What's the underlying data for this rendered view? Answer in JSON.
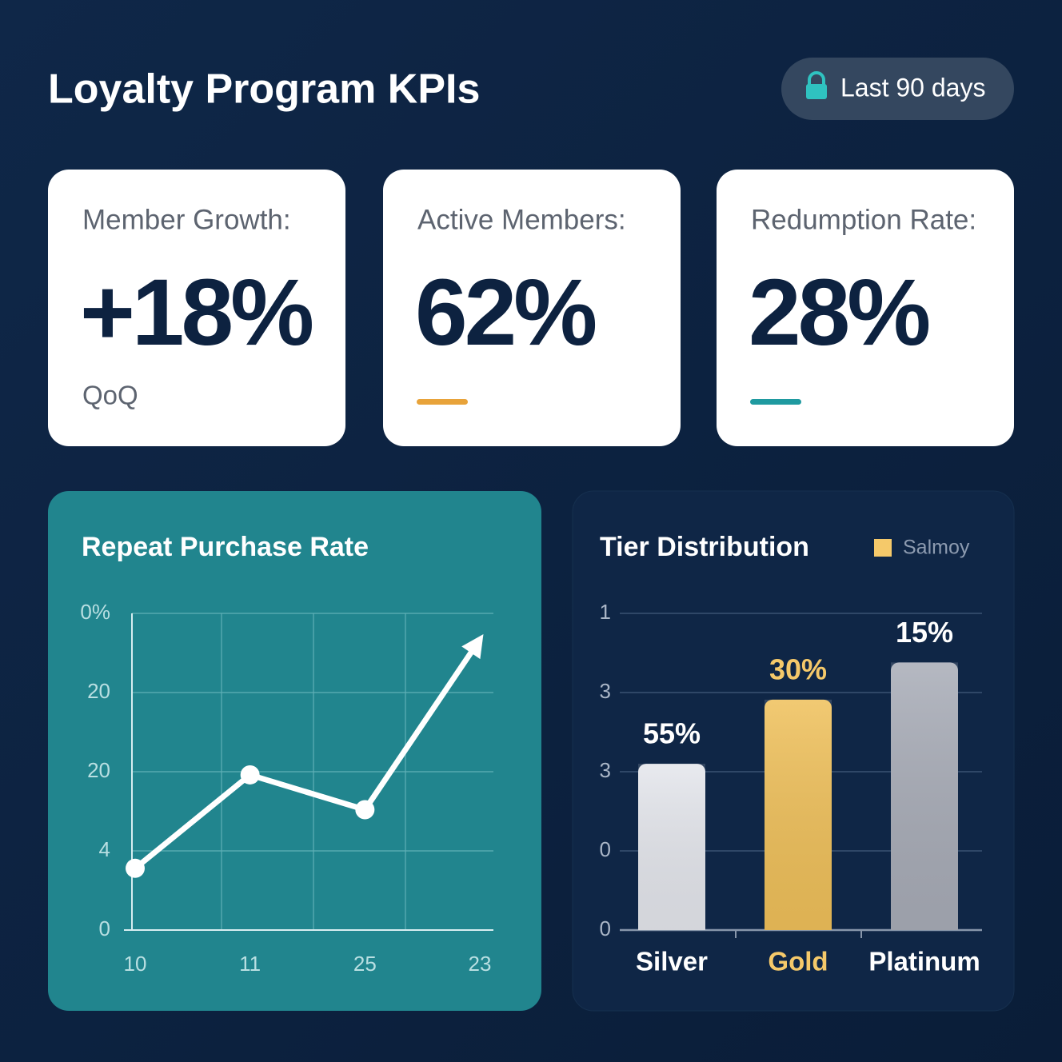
{
  "header": {
    "title": "Loyalty Program KPIs",
    "badge": "Last 90 days"
  },
  "kpis": [
    {
      "label": "Member Growth:",
      "value": "+18%",
      "note": "QoQ"
    },
    {
      "label": "Active Members:",
      "value": "62%",
      "accent_color": "#e8a33a"
    },
    {
      "label": "Redumption Rate:",
      "value": "28%",
      "accent_color": "#1f9aa0"
    }
  ],
  "chart_data": [
    {
      "type": "line",
      "title": "Repeat Purchase Rate",
      "categories": [
        "10",
        "11",
        "25",
        "23"
      ],
      "values": [
        0.78,
        1.96,
        1.52,
        3.67
      ],
      "color": "#ffffff",
      "ylim": [
        0,
        4
      ],
      "yticks": [
        0,
        {
          "value": 1,
          "label": "4"
        },
        {
          "value": 2,
          "label": "20"
        },
        {
          "value": 3,
          "label": "20"
        },
        {
          "value": 4,
          "label": "0%"
        }
      ],
      "grid": true
    },
    {
      "type": "bar",
      "title": "Tier Distribution",
      "categories": [
        "Silver",
        "Gold",
        "Platinum"
      ],
      "series": [
        {
          "name": "Salmoy",
          "color": "#f5c96a",
          "values": [
            2.1,
            2.91,
            3.38
          ]
        }
      ],
      "bar_colors": [
        "#e4e6ec",
        "#efc05a",
        "#a8acb7"
      ],
      "label_colors": [
        "#ffffff",
        "#f5c96a",
        "#ffffff"
      ],
      "annotations": [
        "55%",
        "30%",
        "15%"
      ],
      "ylim": [
        0,
        4
      ],
      "yticks": [
        0,
        {
          "value": 1,
          "label": "0"
        },
        {
          "value": 2,
          "label": "3"
        },
        {
          "value": 3,
          "label": "3"
        },
        {
          "value": 4,
          "label": "1"
        }
      ],
      "grid": true
    }
  ]
}
